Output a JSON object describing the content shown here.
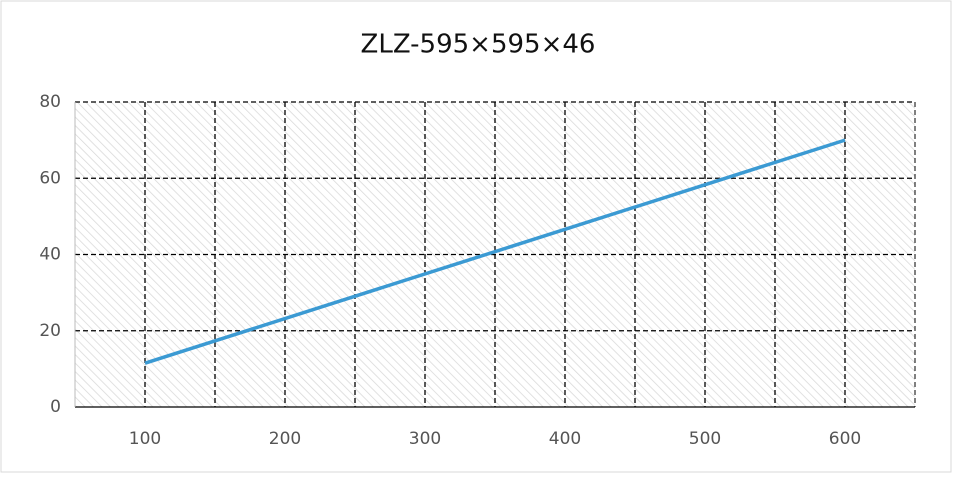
{
  "chart_data": {
    "type": "line",
    "title": "ZLZ-595×595×46",
    "x": [
      100,
      600
    ],
    "series": [
      {
        "values": [
          11.5,
          70
        ],
        "color": "#3b9ad3"
      }
    ],
    "xlim": [
      50,
      650
    ],
    "xticks": [
      100,
      200,
      300,
      400,
      500,
      600
    ],
    "x_minor_ticks": [
      150,
      250,
      350,
      450,
      550
    ],
    "ylim": [
      0,
      80
    ],
    "yticks": [
      0,
      20,
      40,
      60,
      80
    ],
    "grid": true
  }
}
